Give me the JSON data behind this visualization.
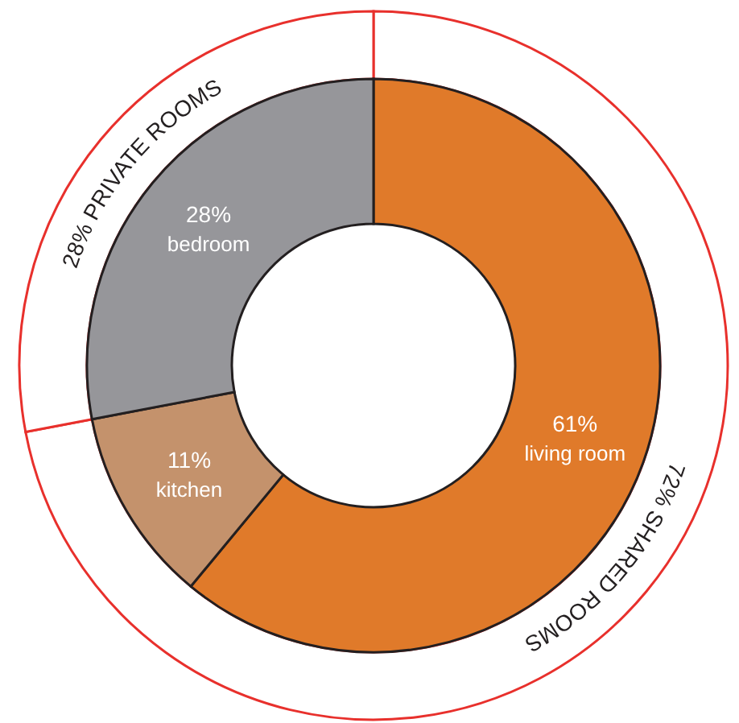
{
  "chart_data": [
    {
      "type": "donut",
      "categories": [
        "living room",
        "kitchen",
        "bedroom"
      ],
      "values": [
        61,
        11,
        28
      ],
      "colors": [
        "#e07a2a",
        "#c4926c",
        "#96969a"
      ],
      "value_labels": [
        "61%",
        "11%",
        "28%"
      ]
    },
    {
      "type": "donut",
      "categories": [
        "SHARED ROOMS",
        "PRIVATE ROOMS"
      ],
      "values": [
        72,
        28
      ],
      "colors": [
        "#ffffff",
        "#ffffff"
      ],
      "value_labels": [
        "72%",
        "28%"
      ]
    }
  ]
}
